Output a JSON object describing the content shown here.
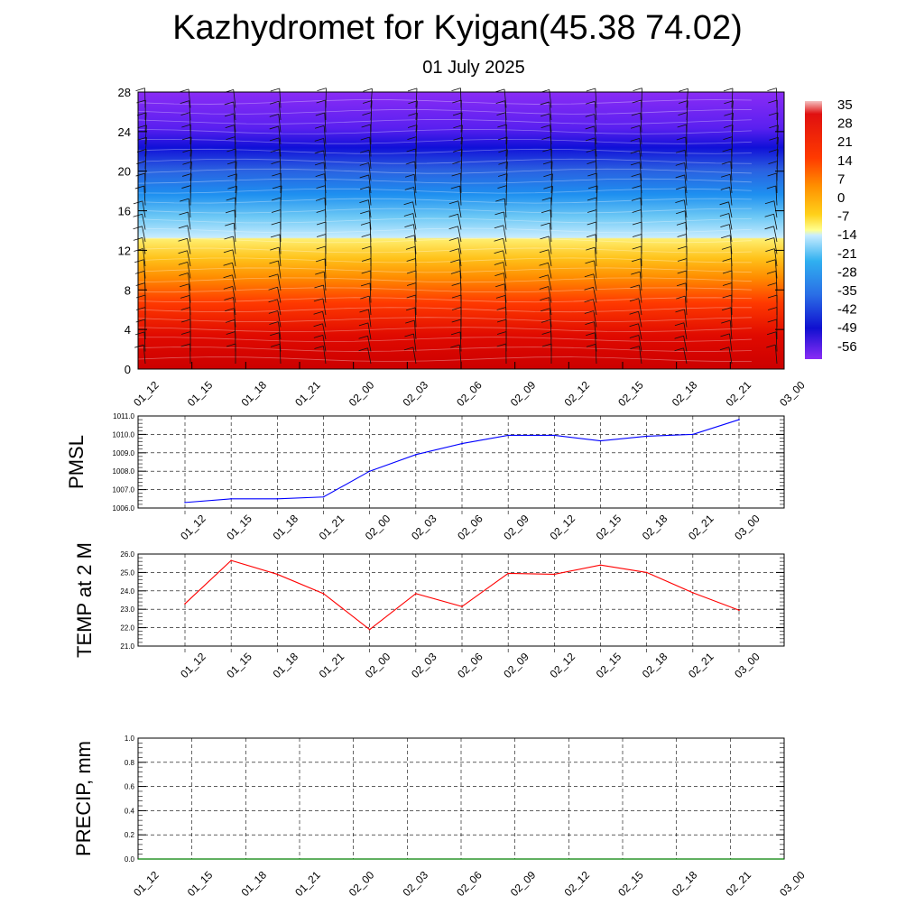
{
  "title": "Kazhydromet for Kyigan(45.38 74.02)",
  "subtitle": "01 July 2025",
  "time_labels": [
    "01_12",
    "01_15",
    "01_18",
    "01_21",
    "02_00",
    "02_03",
    "02_06",
    "02_09",
    "02_12",
    "02_15",
    "02_18",
    "02_21",
    "03_00"
  ],
  "chart_data": [
    {
      "type": "heatmap",
      "title": "",
      "ylim": [
        0,
        28
      ],
      "y_ticks": [
        "0",
        "4",
        "8",
        "12",
        "16",
        "20",
        "24",
        "28"
      ],
      "x_ticks": [
        "01_12",
        "01_15",
        "01_18",
        "01_21",
        "02_00",
        "02_03",
        "02_06",
        "02_09",
        "02_12",
        "02_15",
        "02_18",
        "02_21",
        "03_00"
      ],
      "colorbar_labels": [
        "35",
        "28",
        "21",
        "14",
        "7",
        "0",
        "-7",
        "-14",
        "-21",
        "-28",
        "-35",
        "-42",
        "-49",
        "-56"
      ],
      "colorscale": [
        "#f4c2c2",
        "#d10000",
        "#ff3a00",
        "#ff8c00",
        "#ffd11a",
        "#ffff80",
        "#b8e6ff",
        "#30b0f0",
        "#2a6ee6",
        "#1010d0",
        "#7a22f0"
      ],
      "overlay": "wind barbs and contour lines",
      "grid": false
    },
    {
      "type": "line",
      "ylabel": "PMSL",
      "ylim": [
        1006.0,
        1011.0
      ],
      "y_ticks": [
        "1006.0",
        "1007.0",
        "1008.0",
        "1009.0",
        "1010.0",
        "1011.0"
      ],
      "x": [
        "01_12",
        "01_15",
        "01_18",
        "01_21",
        "02_00",
        "02_03",
        "02_06",
        "02_09",
        "02_12",
        "02_15",
        "02_18",
        "02_21",
        "03_00"
      ],
      "series": [
        {
          "values": [
            1006.3,
            1006.5,
            1006.5,
            1006.6,
            1008.0,
            1008.9,
            1009.5,
            1009.95,
            1009.95,
            1009.65,
            1009.9,
            1010.0,
            1010.8
          ],
          "color": "#0000ff"
        }
      ],
      "grid": true
    },
    {
      "type": "line",
      "ylabel": "TEMP at 2 M",
      "ylim": [
        21.0,
        26.0
      ],
      "y_ticks": [
        "21.0",
        "22.0",
        "23.0",
        "24.0",
        "25.0",
        "26.0"
      ],
      "x": [
        "01_12",
        "01_15",
        "01_18",
        "01_21",
        "02_00",
        "02_03",
        "02_06",
        "02_09",
        "02_12",
        "02_15",
        "02_18",
        "02_21",
        "03_00"
      ],
      "series": [
        {
          "values": [
            23.3,
            25.65,
            24.9,
            23.85,
            21.9,
            23.85,
            23.15,
            24.95,
            24.9,
            25.4,
            25.0,
            23.9,
            22.95
          ],
          "color": "#ff0000"
        }
      ],
      "grid": true
    },
    {
      "type": "line",
      "ylabel": "PRECIP, mm",
      "ylim": [
        0.0,
        1.0
      ],
      "y_ticks": [
        "0.0",
        "0.2",
        "0.4",
        "0.6",
        "0.8",
        "1.0"
      ],
      "x": [
        "01_12",
        "01_15",
        "01_18",
        "01_21",
        "02_00",
        "02_03",
        "02_06",
        "02_09",
        "02_12",
        "02_15",
        "02_18",
        "02_21",
        "03_00"
      ],
      "series": [
        {
          "values": [
            0,
            0,
            0,
            0,
            0,
            0,
            0,
            0,
            0,
            0,
            0,
            0,
            0
          ],
          "color": "#008000"
        }
      ],
      "grid": true
    }
  ]
}
